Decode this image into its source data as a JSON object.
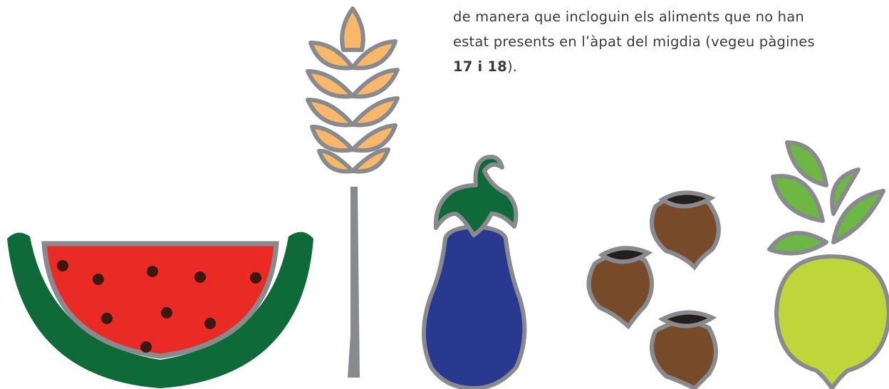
{
  "paragraph": {
    "lines": [
      "de manera que incloguin els aliments que no han",
      "estat presents en l’àpat del migdia (vegeu pàgines"
    ],
    "last_line": {
      "bold": "17 i 18",
      "rest": ")."
    }
  }
}
